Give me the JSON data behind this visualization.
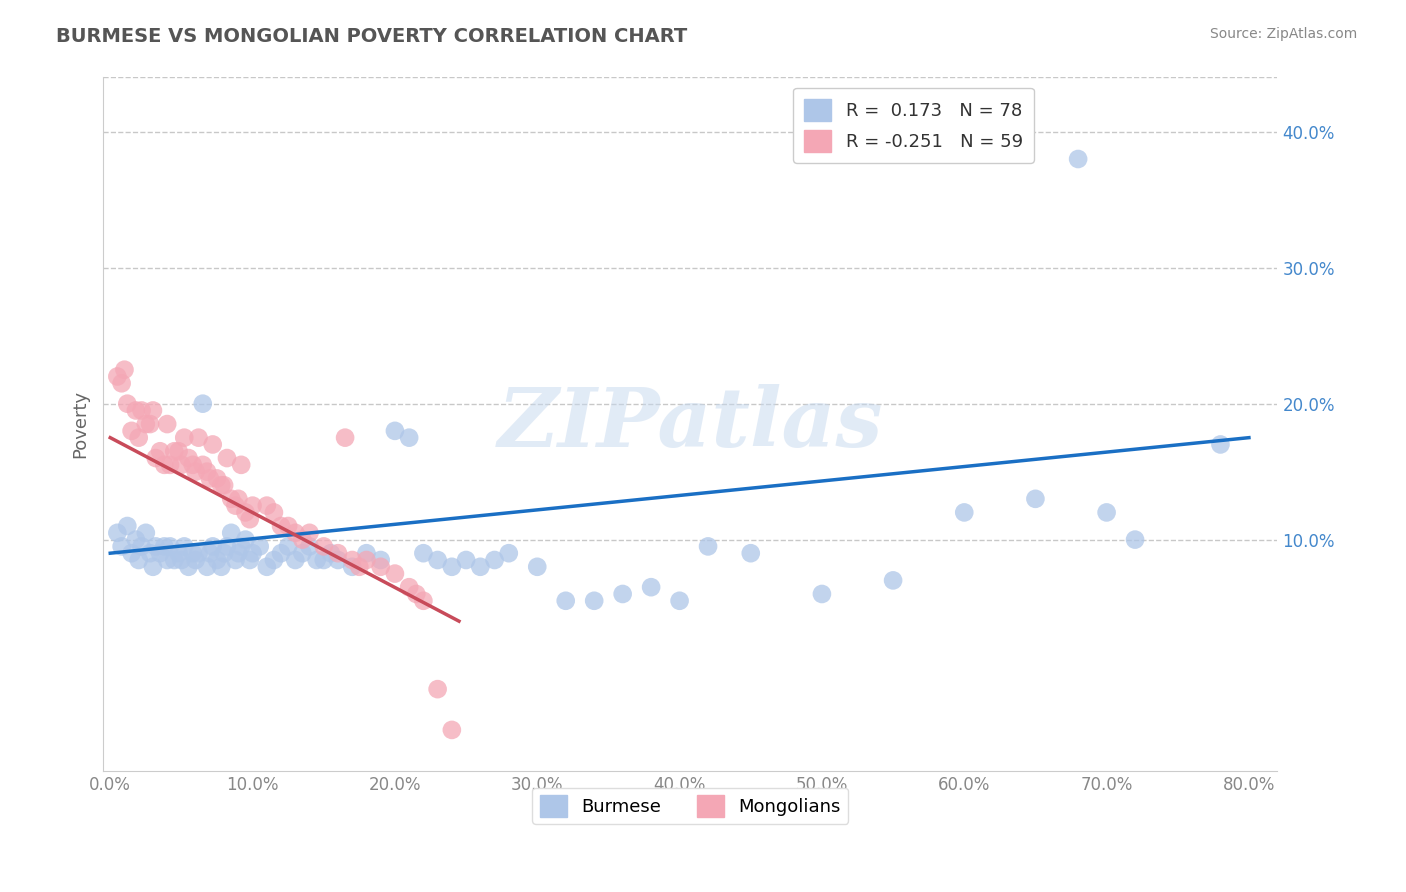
{
  "title": "BURMESE VS MONGOLIAN POVERTY CORRELATION CHART",
  "source": "Source: ZipAtlas.com",
  "ylabel": "Poverty",
  "watermark": "ZIPatlas",
  "xlim": [
    -0.005,
    0.82
  ],
  "ylim": [
    -0.07,
    0.44
  ],
  "xtick_vals": [
    0.0,
    0.1,
    0.2,
    0.3,
    0.4,
    0.5,
    0.6,
    0.7,
    0.8
  ],
  "xticklabels": [
    "0.0%",
    "10.0%",
    "20.0%",
    "30.0%",
    "40.0%",
    "50.0%",
    "60.0%",
    "70.0%",
    "80.0%"
  ],
  "ytick_vals": [
    0.1,
    0.2,
    0.3,
    0.4
  ],
  "yticklabels": [
    "10.0%",
    "20.0%",
    "30.0%",
    "40.0%"
  ],
  "burmese_color": "#aec6e8",
  "mongolian_color": "#f4a7b5",
  "burmese_line_color": "#1a6fc4",
  "mongolian_line_color": "#c84b5a",
  "background_color": "#ffffff",
  "grid_color": "#c8c8c8",
  "title_color": "#555555",
  "axis_label_color": "#666666",
  "tick_color": "#888888",
  "right_tick_color": "#4488cc",
  "burmese_x": [
    0.005,
    0.008,
    0.012,
    0.015,
    0.018,
    0.02,
    0.022,
    0.025,
    0.028,
    0.03,
    0.032,
    0.035,
    0.038,
    0.04,
    0.042,
    0.045,
    0.048,
    0.05,
    0.052,
    0.055,
    0.058,
    0.06,
    0.062,
    0.065,
    0.068,
    0.07,
    0.072,
    0.075,
    0.078,
    0.08,
    0.082,
    0.085,
    0.088,
    0.09,
    0.092,
    0.095,
    0.098,
    0.1,
    0.105,
    0.11,
    0.115,
    0.12,
    0.125,
    0.13,
    0.135,
    0.14,
    0.145,
    0.15,
    0.155,
    0.16,
    0.17,
    0.18,
    0.19,
    0.2,
    0.21,
    0.22,
    0.23,
    0.24,
    0.25,
    0.26,
    0.27,
    0.28,
    0.3,
    0.32,
    0.34,
    0.36,
    0.38,
    0.4,
    0.42,
    0.45,
    0.5,
    0.55,
    0.6,
    0.65,
    0.68,
    0.7,
    0.72,
    0.78
  ],
  "burmese_y": [
    0.105,
    0.095,
    0.11,
    0.09,
    0.1,
    0.085,
    0.095,
    0.105,
    0.09,
    0.08,
    0.095,
    0.09,
    0.095,
    0.085,
    0.095,
    0.085,
    0.09,
    0.085,
    0.095,
    0.08,
    0.09,
    0.085,
    0.09,
    0.2,
    0.08,
    0.09,
    0.095,
    0.085,
    0.08,
    0.09,
    0.095,
    0.105,
    0.085,
    0.09,
    0.095,
    0.1,
    0.085,
    0.09,
    0.095,
    0.08,
    0.085,
    0.09,
    0.095,
    0.085,
    0.09,
    0.095,
    0.085,
    0.085,
    0.09,
    0.085,
    0.08,
    0.09,
    0.085,
    0.18,
    0.175,
    0.09,
    0.085,
    0.08,
    0.085,
    0.08,
    0.085,
    0.09,
    0.08,
    0.055,
    0.055,
    0.06,
    0.065,
    0.055,
    0.095,
    0.09,
    0.06,
    0.07,
    0.12,
    0.13,
    0.38,
    0.12,
    0.1,
    0.17
  ],
  "mongolian_x": [
    0.005,
    0.008,
    0.01,
    0.012,
    0.015,
    0.018,
    0.02,
    0.022,
    0.025,
    0.028,
    0.03,
    0.032,
    0.035,
    0.038,
    0.04,
    0.042,
    0.045,
    0.048,
    0.05,
    0.052,
    0.055,
    0.058,
    0.06,
    0.062,
    0.065,
    0.068,
    0.07,
    0.072,
    0.075,
    0.078,
    0.08,
    0.082,
    0.085,
    0.088,
    0.09,
    0.092,
    0.095,
    0.098,
    0.1,
    0.11,
    0.115,
    0.12,
    0.125,
    0.13,
    0.135,
    0.14,
    0.15,
    0.16,
    0.165,
    0.17,
    0.175,
    0.18,
    0.19,
    0.2,
    0.21,
    0.215,
    0.22,
    0.23,
    0.24
  ],
  "mongolian_y": [
    0.22,
    0.215,
    0.225,
    0.2,
    0.18,
    0.195,
    0.175,
    0.195,
    0.185,
    0.185,
    0.195,
    0.16,
    0.165,
    0.155,
    0.185,
    0.155,
    0.165,
    0.165,
    0.155,
    0.175,
    0.16,
    0.155,
    0.15,
    0.175,
    0.155,
    0.15,
    0.145,
    0.17,
    0.145,
    0.14,
    0.14,
    0.16,
    0.13,
    0.125,
    0.13,
    0.155,
    0.12,
    0.115,
    0.125,
    0.125,
    0.12,
    0.11,
    0.11,
    0.105,
    0.1,
    0.105,
    0.095,
    0.09,
    0.175,
    0.085,
    0.08,
    0.085,
    0.08,
    0.075,
    0.065,
    0.06,
    0.055,
    -0.01,
    -0.04
  ],
  "burmese_line_x": [
    0.0,
    0.8
  ],
  "burmese_line_y": [
    0.09,
    0.175
  ],
  "mongolian_line_x": [
    0.0,
    0.245
  ],
  "mongolian_line_y": [
    0.175,
    0.04
  ]
}
